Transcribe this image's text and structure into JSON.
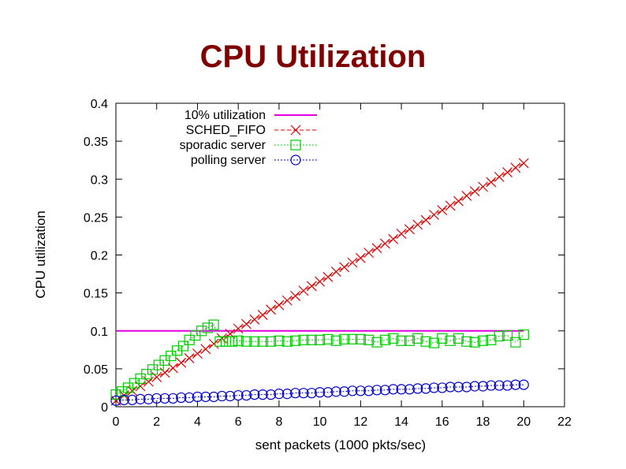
{
  "slide": {
    "title": "CPU Utilization"
  },
  "chart_data": {
    "type": "line",
    "title": "",
    "xlabel": "sent packets (1000 pkts/sec)",
    "ylabel": "CPU utilization",
    "xlim": [
      0,
      22
    ],
    "ylim": [
      0,
      0.4
    ],
    "xticks": [
      "0",
      "2",
      "4",
      "6",
      "8",
      "10",
      "12",
      "14",
      "16",
      "18",
      "20",
      "22"
    ],
    "yticks": [
      "0",
      "0.05",
      "0.1",
      "0.15",
      "0.2",
      "0.25",
      "0.3",
      "0.35",
      "0.4"
    ],
    "xtick_values": [
      0,
      2,
      4,
      6,
      8,
      10,
      12,
      14,
      16,
      18,
      20,
      22
    ],
    "ytick_values": [
      0,
      0.05,
      0.1,
      0.15,
      0.2,
      0.25,
      0.3,
      0.35,
      0.4
    ],
    "grid": false,
    "legend_position": "top-left",
    "series": [
      {
        "name": "10% utilization",
        "color": "#e000e0",
        "line_style": "solid",
        "marker": "none",
        "x": [
          0,
          20
        ],
        "y": [
          0.1,
          0.1
        ]
      },
      {
        "name": "SCHED_FIFO",
        "color": "#e00000",
        "line_style": "dashed",
        "marker": "cross",
        "x": [
          0,
          0.4,
          0.8,
          1.2,
          1.6,
          2.0,
          2.4,
          2.8,
          3.2,
          3.6,
          4.0,
          4.4,
          4.8,
          5.2,
          5.6,
          6.0,
          6.4,
          6.8,
          7.2,
          7.6,
          8.0,
          8.4,
          8.8,
          9.2,
          9.6,
          10.0,
          10.4,
          10.8,
          11.2,
          11.6,
          12.0,
          12.4,
          12.8,
          13.2,
          13.6,
          14.0,
          14.4,
          14.8,
          15.2,
          15.6,
          16.0,
          16.4,
          16.8,
          17.2,
          17.6,
          18.0,
          18.4,
          18.8,
          19.2,
          19.6,
          20.0
        ],
        "y": [
          0.008,
          0.015,
          0.021,
          0.027,
          0.033,
          0.039,
          0.045,
          0.051,
          0.058,
          0.064,
          0.07,
          0.076,
          0.083,
          0.09,
          0.096,
          0.103,
          0.109,
          0.115,
          0.121,
          0.128,
          0.134,
          0.14,
          0.146,
          0.153,
          0.159,
          0.165,
          0.171,
          0.178,
          0.184,
          0.19,
          0.196,
          0.203,
          0.209,
          0.215,
          0.221,
          0.228,
          0.234,
          0.24,
          0.246,
          0.253,
          0.259,
          0.265,
          0.271,
          0.278,
          0.284,
          0.29,
          0.296,
          0.303,
          0.309,
          0.315,
          0.321
        ]
      },
      {
        "name": "sporadic server",
        "color": "#00cc00",
        "line_style": "dotted",
        "marker": "square",
        "x": [
          0,
          0.3,
          0.6,
          0.9,
          1.2,
          1.5,
          1.8,
          2.1,
          2.4,
          2.7,
          3.0,
          3.3,
          3.6,
          3.9,
          4.2,
          4.5,
          4.8,
          5.1,
          5.4,
          5.7,
          6.0,
          6.4,
          6.8,
          7.2,
          7.6,
          8.0,
          8.4,
          8.8,
          9.2,
          9.6,
          10.0,
          10.4,
          10.8,
          11.2,
          11.6,
          12.0,
          12.4,
          12.8,
          13.2,
          13.6,
          14.0,
          14.4,
          14.8,
          15.2,
          15.6,
          16.0,
          16.4,
          16.8,
          17.2,
          17.6,
          18.0,
          18.4,
          18.8,
          19.2,
          19.6,
          20.0
        ],
        "y": [
          0.016,
          0.02,
          0.025,
          0.031,
          0.037,
          0.043,
          0.049,
          0.055,
          0.061,
          0.067,
          0.074,
          0.08,
          0.088,
          0.094,
          0.1,
          0.104,
          0.108,
          0.086,
          0.086,
          0.086,
          0.087,
          0.086,
          0.086,
          0.086,
          0.086,
          0.087,
          0.086,
          0.087,
          0.088,
          0.088,
          0.088,
          0.089,
          0.087,
          0.089,
          0.089,
          0.089,
          0.088,
          0.085,
          0.088,
          0.09,
          0.087,
          0.087,
          0.09,
          0.086,
          0.084,
          0.09,
          0.087,
          0.09,
          0.086,
          0.085,
          0.087,
          0.088,
          0.093,
          0.094,
          0.085,
          0.095
        ]
      },
      {
        "name": "polling server",
        "color": "#0000cc",
        "line_style": "dotted",
        "marker": "circle",
        "x": [
          0,
          0.4,
          0.8,
          1.2,
          1.6,
          2.0,
          2.4,
          2.8,
          3.2,
          3.6,
          4.0,
          4.4,
          4.8,
          5.2,
          5.6,
          6.0,
          6.4,
          6.8,
          7.2,
          7.6,
          8.0,
          8.4,
          8.8,
          9.2,
          9.6,
          10.0,
          10.4,
          10.8,
          11.2,
          11.6,
          12.0,
          12.4,
          12.8,
          13.2,
          13.6,
          14.0,
          14.4,
          14.8,
          15.2,
          15.6,
          16.0,
          16.4,
          16.8,
          17.2,
          17.6,
          18.0,
          18.4,
          18.8,
          19.2,
          19.6,
          20.0
        ],
        "y": [
          0.008,
          0.009,
          0.009,
          0.01,
          0.01,
          0.011,
          0.011,
          0.011,
          0.012,
          0.012,
          0.013,
          0.013,
          0.013,
          0.014,
          0.014,
          0.015,
          0.015,
          0.016,
          0.016,
          0.016,
          0.017,
          0.017,
          0.018,
          0.018,
          0.018,
          0.019,
          0.019,
          0.02,
          0.02,
          0.021,
          0.021,
          0.021,
          0.022,
          0.022,
          0.023,
          0.023,
          0.023,
          0.024,
          0.024,
          0.025,
          0.025,
          0.026,
          0.026,
          0.026,
          0.027,
          0.027,
          0.028,
          0.028,
          0.028,
          0.029,
          0.029
        ]
      }
    ]
  }
}
